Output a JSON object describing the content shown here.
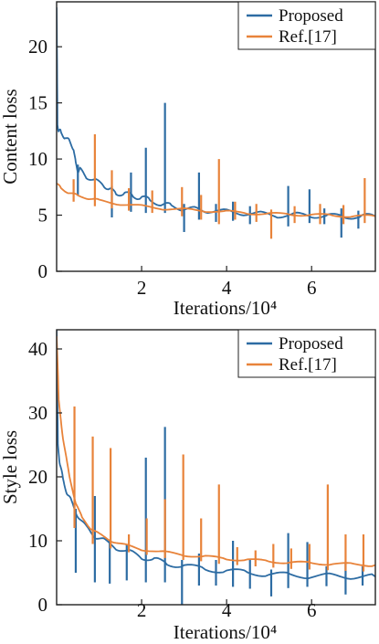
{
  "chart_data": [
    {
      "type": "line",
      "xlabel": "Iterations/10⁴",
      "ylabel": "Content loss",
      "xlim": [
        0,
        7.5
      ],
      "ylim": [
        0,
        24
      ],
      "xticks": [
        2,
        4,
        6
      ],
      "yticks": [
        0,
        5,
        10,
        15,
        20
      ],
      "xtick_labels": [
        "2",
        "4",
        "6"
      ],
      "ytick_labels": [
        "0",
        "5",
        "10",
        "15",
        "20"
      ],
      "legend": {
        "position": "top-right",
        "entries": [
          "Proposed",
          "Ref.[17]"
        ]
      },
      "colors": {
        "Proposed": "#2d6ca3",
        "Ref.[17]": "#e8833a"
      },
      "series": [
        {
          "name": "Proposed",
          "x": [
            0,
            0.02,
            0.05,
            0.1,
            0.2,
            0.3,
            0.4,
            0.45,
            0.5,
            0.55,
            0.7,
            0.9,
            1.1,
            1.25,
            1.4,
            1.6,
            1.8,
            2.0,
            2.2,
            2.5,
            2.7,
            3.0,
            3.3,
            3.6,
            4.0,
            4.4,
            4.8,
            5.2,
            5.6,
            6.0,
            6.4,
            6.8,
            7.2,
            7.5
          ],
          "y": [
            23.5,
            13.0,
            12.6,
            12.3,
            12.0,
            11.5,
            11.0,
            9.5,
            9.0,
            9.0,
            8.5,
            8.0,
            7.8,
            7.2,
            7.0,
            6.9,
            6.7,
            6.6,
            6.3,
            6.0,
            5.8,
            5.6,
            5.5,
            5.4,
            5.3,
            5.2,
            5.1,
            5.0,
            5.0,
            5.0,
            4.9,
            4.9,
            4.9,
            4.9
          ],
          "spikes": [
            {
              "x": 0.5,
              "low": 6.8,
              "high": 9.5
            },
            {
              "x": 1.3,
              "low": 4.8,
              "high": 7.6
            },
            {
              "x": 1.75,
              "low": 5.3,
              "high": 8.8
            },
            {
              "x": 2.1,
              "low": 5.2,
              "high": 11.0
            },
            {
              "x": 2.55,
              "low": 5.2,
              "high": 15.0
            },
            {
              "x": 3.0,
              "low": 3.5,
              "high": 6.0
            },
            {
              "x": 3.35,
              "low": 4.6,
              "high": 8.8
            },
            {
              "x": 3.75,
              "low": 4.4,
              "high": 6.0
            },
            {
              "x": 4.15,
              "low": 4.5,
              "high": 6.2
            },
            {
              "x": 4.55,
              "low": 4.2,
              "high": 5.8
            },
            {
              "x": 5.45,
              "low": 4.0,
              "high": 7.6
            },
            {
              "x": 5.95,
              "low": 4.3,
              "high": 7.3
            },
            {
              "x": 6.3,
              "low": 4.2,
              "high": 5.6
            },
            {
              "x": 6.7,
              "low": 3.0,
              "high": 5.6
            },
            {
              "x": 7.1,
              "low": 3.8,
              "high": 5.4
            }
          ]
        },
        {
          "name": "Ref.[17]",
          "x": [
            0,
            0.1,
            0.3,
            0.5,
            0.8,
            1.0,
            1.5,
            2.0,
            2.5,
            3.0,
            3.5,
            4.0,
            4.5,
            5.0,
            5.5,
            6.0,
            6.5,
            7.0,
            7.5
          ],
          "y": [
            7.8,
            7.4,
            7.0,
            6.7,
            6.5,
            6.3,
            6.0,
            5.8,
            5.6,
            5.5,
            5.4,
            5.3,
            5.2,
            5.1,
            5.1,
            5.0,
            5.0,
            4.9,
            4.9
          ],
          "spikes": [
            {
              "x": 0.4,
              "low": 6.2,
              "high": 8.2
            },
            {
              "x": 0.9,
              "low": 5.8,
              "high": 12.2
            },
            {
              "x": 1.3,
              "low": 5.6,
              "high": 9.0
            },
            {
              "x": 1.7,
              "low": 5.4,
              "high": 7.4
            },
            {
              "x": 2.25,
              "low": 5.2,
              "high": 7.2
            },
            {
              "x": 2.95,
              "low": 4.9,
              "high": 7.5
            },
            {
              "x": 3.4,
              "low": 4.6,
              "high": 6.8
            },
            {
              "x": 3.82,
              "low": 4.2,
              "high": 10.0
            },
            {
              "x": 4.2,
              "low": 4.6,
              "high": 6.2
            },
            {
              "x": 4.7,
              "low": 4.4,
              "high": 6.0
            },
            {
              "x": 5.05,
              "low": 2.9,
              "high": 5.5
            },
            {
              "x": 5.6,
              "low": 4.3,
              "high": 5.8
            },
            {
              "x": 6.2,
              "low": 4.2,
              "high": 6.0
            },
            {
              "x": 6.75,
              "low": 4.2,
              "high": 5.9
            },
            {
              "x": 7.25,
              "low": 4.3,
              "high": 8.3
            }
          ]
        }
      ]
    },
    {
      "type": "line",
      "xlabel": "Iterations/10⁴",
      "ylabel": "Style loss",
      "xlim": [
        0,
        7.5
      ],
      "ylim": [
        0,
        43
      ],
      "xticks": [
        2,
        4,
        6
      ],
      "yticks": [
        0,
        10,
        20,
        30,
        40
      ],
      "xtick_labels": [
        "2",
        "4",
        "6"
      ],
      "ytick_labels": [
        "0",
        "10",
        "20",
        "30",
        "40"
      ],
      "legend": {
        "position": "top-right",
        "entries": [
          "Proposed",
          "Ref.[17]"
        ]
      },
      "colors": {
        "Proposed": "#2d6ca3",
        "Ref.[17]": "#e8833a"
      },
      "series": [
        {
          "name": "Proposed",
          "x": [
            0,
            0.03,
            0.08,
            0.15,
            0.25,
            0.35,
            0.5,
            0.7,
            0.9,
            1.1,
            1.4,
            1.7,
            2.0,
            2.3,
            2.6,
            3.0,
            3.5,
            4.0,
            4.5,
            5.0,
            5.5,
            6.0,
            6.5,
            7.0,
            7.5
          ],
          "y": [
            43,
            25,
            22,
            19.5,
            17.5,
            16.0,
            14.0,
            12.0,
            10.8,
            10.0,
            9.0,
            8.2,
            7.5,
            7.0,
            6.5,
            6.0,
            5.6,
            5.3,
            5.0,
            4.8,
            4.6,
            4.5,
            4.5,
            4.4,
            4.4
          ],
          "spikes": [
            {
              "x": 0.45,
              "low": 5.0,
              "high": 15.0
            },
            {
              "x": 0.9,
              "low": 3.5,
              "high": 17.0
            },
            {
              "x": 1.25,
              "low": 3.3,
              "high": 10.0
            },
            {
              "x": 1.65,
              "low": 3.8,
              "high": 9.5
            },
            {
              "x": 2.1,
              "low": 3.5,
              "high": 23.0
            },
            {
              "x": 2.55,
              "low": 3.5,
              "high": 27.8
            },
            {
              "x": 2.95,
              "low": 0.0,
              "high": 7.0
            },
            {
              "x": 3.35,
              "low": 3.0,
              "high": 8.0
            },
            {
              "x": 3.75,
              "low": 3.0,
              "high": 7.0
            },
            {
              "x": 4.15,
              "low": 2.8,
              "high": 10.0
            },
            {
              "x": 4.55,
              "low": 2.5,
              "high": 7.0
            },
            {
              "x": 5.05,
              "low": 1.3,
              "high": 5.5
            },
            {
              "x": 5.45,
              "low": 2.6,
              "high": 11.2
            },
            {
              "x": 5.9,
              "low": 2.8,
              "high": 9.8
            },
            {
              "x": 6.35,
              "low": 2.9,
              "high": 6.0
            },
            {
              "x": 6.8,
              "low": 1.6,
              "high": 6.5
            },
            {
              "x": 7.2,
              "low": 3.0,
              "high": 6.0
            }
          ]
        },
        {
          "name": "Ref.[17]",
          "x": [
            0,
            0.05,
            0.15,
            0.3,
            0.45,
            0.6,
            0.8,
            1.0,
            1.3,
            1.6,
            2.0,
            2.5,
            3.0,
            3.5,
            4.0,
            4.5,
            5.0,
            5.5,
            6.0,
            6.5,
            7.0,
            7.5
          ],
          "y": [
            42,
            32,
            26,
            20,
            16,
            13.5,
            12.0,
            11.0,
            10.0,
            9.3,
            8.7,
            8.2,
            7.8,
            7.5,
            7.2,
            7.0,
            6.8,
            6.6,
            6.5,
            6.4,
            6.3,
            6.2
          ],
          "spikes": [
            {
              "x": 0.42,
              "low": 12.0,
              "high": 31.0
            },
            {
              "x": 0.85,
              "low": 9.5,
              "high": 26.3
            },
            {
              "x": 1.27,
              "low": 8.8,
              "high": 24.5
            },
            {
              "x": 1.7,
              "low": 8.2,
              "high": 11.0
            },
            {
              "x": 2.12,
              "low": 7.8,
              "high": 13.5
            },
            {
              "x": 2.55,
              "low": 7.3,
              "high": 16.5
            },
            {
              "x": 2.98,
              "low": 7.0,
              "high": 23.5
            },
            {
              "x": 3.4,
              "low": 6.8,
              "high": 13.5
            },
            {
              "x": 3.82,
              "low": 6.4,
              "high": 18.8
            },
            {
              "x": 4.25,
              "low": 6.2,
              "high": 9.0
            },
            {
              "x": 4.68,
              "low": 6.0,
              "high": 8.5
            },
            {
              "x": 5.1,
              "low": 5.8,
              "high": 9.5
            },
            {
              "x": 5.52,
              "low": 5.6,
              "high": 8.8
            },
            {
              "x": 5.95,
              "low": 5.5,
              "high": 9.5
            },
            {
              "x": 6.38,
              "low": 5.4,
              "high": 18.8
            },
            {
              "x": 6.8,
              "low": 5.3,
              "high": 11.0
            },
            {
              "x": 7.22,
              "low": 5.2,
              "high": 11.0
            }
          ]
        }
      ]
    }
  ]
}
